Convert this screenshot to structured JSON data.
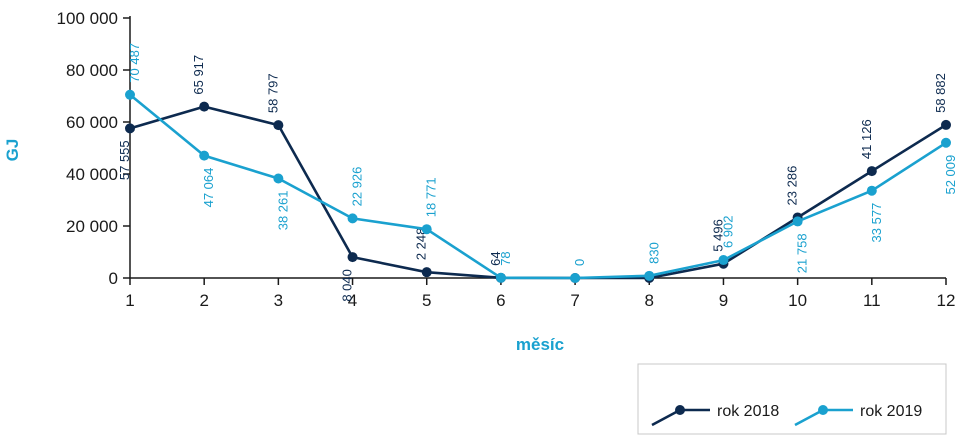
{
  "chart_data": {
    "type": "line",
    "title": "",
    "xlabel": "měsíc",
    "ylabel": "GJ",
    "x": [
      1,
      2,
      3,
      4,
      5,
      6,
      7,
      8,
      9,
      10,
      11,
      12
    ],
    "x_tick_labels": [
      "1",
      "2",
      "3",
      "4",
      "5",
      "6",
      "7",
      "8",
      "9",
      "10",
      "11",
      "12"
    ],
    "ylim": [
      0,
      100000
    ],
    "y_ticks": [
      0,
      20000,
      40000,
      60000,
      80000,
      100000
    ],
    "y_tick_labels": [
      "0",
      "20 000",
      "40 000",
      "60 000",
      "80 000",
      "100 000"
    ],
    "grid": false,
    "legend_position": "bottom-right",
    "series": [
      {
        "name": "rok 2018",
        "color": "#0d2a4f",
        "values": [
          57555,
          65917,
          58797,
          8040,
          2248,
          64,
          0,
          0,
          5496,
          23286,
          41126,
          58882
        ],
        "labels": [
          "57 555",
          "65 917",
          "58 797",
          "8 040",
          "2 248",
          "64",
          "",
          "",
          "5 496",
          "23 286",
          "41 126",
          "58 882"
        ],
        "label_side": [
          "below",
          "above",
          "above",
          "below",
          "above",
          "above",
          "above",
          "above",
          "above",
          "above",
          "above",
          "above"
        ]
      },
      {
        "name": "rok 2019",
        "color": "#1aa1cf",
        "values": [
          70487,
          47064,
          38261,
          22926,
          18771,
          78,
          0,
          830,
          6902,
          21758,
          33577,
          52009
        ],
        "labels": [
          "70 487",
          "47 064",
          "38 261",
          "22 926",
          "18 771",
          "78",
          "0",
          "830",
          "6 902",
          "21 758",
          "33 577",
          "52 009"
        ],
        "label_side": [
          "above",
          "below",
          "below",
          "above",
          "above",
          "above",
          "above",
          "above",
          "above",
          "below",
          "below",
          "below"
        ]
      }
    ]
  }
}
